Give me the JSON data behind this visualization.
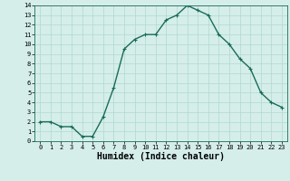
{
  "xlabel": "Humidex (Indice chaleur)",
  "x": [
    0,
    1,
    2,
    3,
    4,
    5,
    6,
    7,
    8,
    9,
    10,
    11,
    12,
    13,
    14,
    15,
    16,
    17,
    18,
    19,
    20,
    21,
    22,
    23
  ],
  "y": [
    2,
    2,
    1.5,
    1.5,
    0.5,
    0.5,
    2.5,
    5.5,
    9.5,
    10.5,
    11,
    11,
    12.5,
    13,
    14,
    13.5,
    13,
    11,
    10,
    8.5,
    7.5,
    5,
    4,
    3.5
  ],
  "line_color": "#1a6b5a",
  "marker_color": "#1a6b5a",
  "bg_color": "#d5eeea",
  "grid_color": "#b0d8d0",
  "ylim": [
    0,
    14
  ],
  "xlim_min": -0.5,
  "xlim_max": 23.5,
  "yticks": [
    0,
    1,
    2,
    3,
    4,
    5,
    6,
    7,
    8,
    9,
    10,
    11,
    12,
    13,
    14
  ],
  "xticks": [
    0,
    1,
    2,
    3,
    4,
    5,
    6,
    7,
    8,
    9,
    10,
    11,
    12,
    13,
    14,
    15,
    16,
    17,
    18,
    19,
    20,
    21,
    22,
    23
  ],
  "tick_fontsize": 5.0,
  "xlabel_fontsize": 7.0,
  "marker_size": 3.5,
  "line_width": 1.0
}
